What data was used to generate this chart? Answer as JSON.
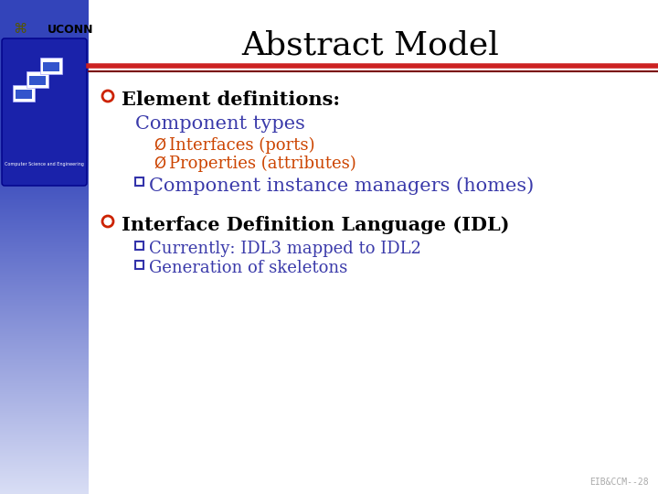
{
  "title": "Abstract Model",
  "title_fontsize": 26,
  "title_color": "#000000",
  "bg_color": "#ffffff",
  "header_line_color1": "#cc2222",
  "header_line_color2": "#7a0000",
  "bullet1_text": "Element definitions:",
  "bullet1_color": "#000000",
  "bullet1_fontsize": 15,
  "sub1_text": "Component types",
  "sub1_color": "#3a3aaa",
  "sub1_fontsize": 15,
  "sub2a_text": "Interfaces (ports)",
  "sub2a_color": "#cc4400",
  "sub2a_fontsize": 13,
  "sub2b_text": "Properties (attributes)",
  "sub2b_color": "#cc4400",
  "sub2b_fontsize": 13,
  "square_color": "#3333aa",
  "sub3_text": "Component instance managers (homes)",
  "sub3_color": "#3a3aaa",
  "sub3_fontsize": 15,
  "bullet2_text": "Interface Definition Language (IDL)",
  "bullet2_color": "#000000",
  "bullet2_fontsize": 15,
  "sub4a_text": "Currently: IDL3 mapped to IDL2",
  "sub4a_color": "#3a3aaa",
  "sub4a_fontsize": 13,
  "sub4b_text": "Generation of skeletons",
  "sub4b_color": "#3a3aaa",
  "sub4b_fontsize": 13,
  "footer_text": "EIB&CCM--28",
  "footer_color": "#aaaaaa",
  "footer_fontsize": 7,
  "sidebar_blue": "#3344bb",
  "sidebar_light": "#dde0f5",
  "uconn_text": "UCONN",
  "marker_color": "#cc2200"
}
